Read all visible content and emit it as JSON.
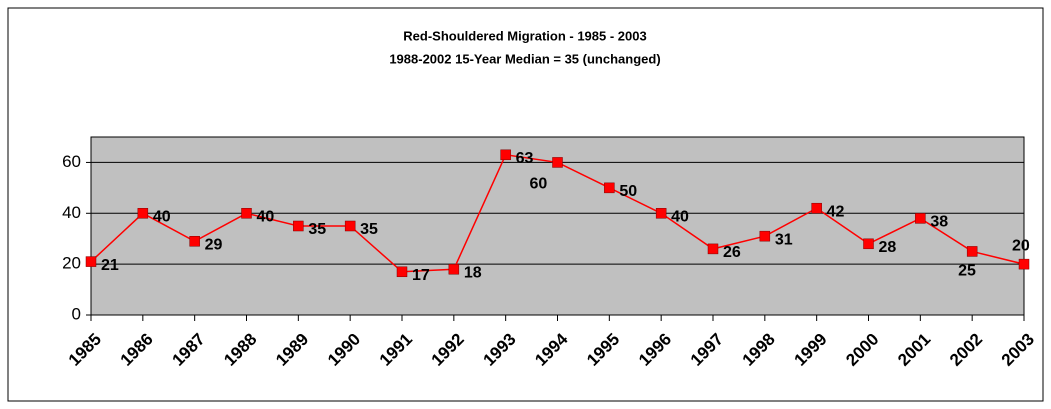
{
  "chart_data": {
    "type": "line",
    "title": "Red-Shouldered Migration - 1985 - 2003",
    "subtitle": "1988-2002 15-Year Median = 35 (unchanged)",
    "categories": [
      "1985",
      "1986",
      "1987",
      "1988",
      "1989",
      "1990",
      "1991",
      "1992",
      "1993",
      "1994",
      "1995",
      "1996",
      "1997",
      "1998",
      "1999",
      "2000",
      "2001",
      "2002",
      "2003"
    ],
    "series": [
      {
        "name": "Red-Shouldered",
        "color": "#ff0000",
        "values": [
          21,
          40,
          29,
          40,
          35,
          35,
          17,
          18,
          63,
          60,
          50,
          40,
          26,
          31,
          42,
          28,
          38,
          25,
          20
        ]
      }
    ],
    "ylim": [
      0,
      70
    ],
    "yticks": [
      0,
      20,
      40,
      60
    ],
    "grid": true
  }
}
